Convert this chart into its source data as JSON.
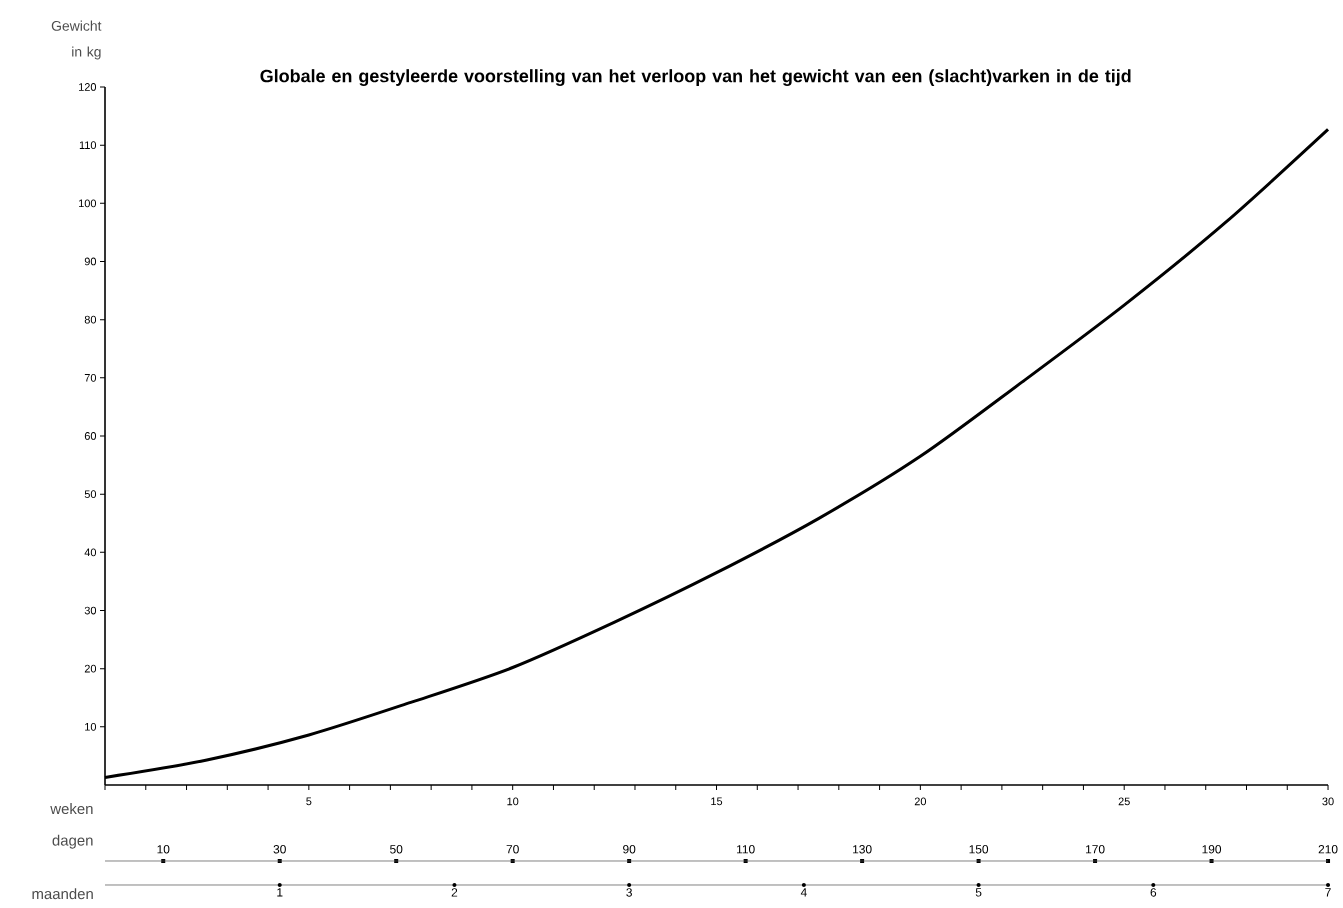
{
  "chart_data": {
    "type": "line",
    "title": "Globale en gestyleerde voorstelling van het verloop van het gewicht van een (slacht)varken in de tijd",
    "xlabel": "weken",
    "ylabel": "Gewicht in kg",
    "x2label": "dagen",
    "x": [
      0,
      2.5,
      5,
      7.5,
      10,
      12.5,
      15,
      17.5,
      20,
      22.5,
      25,
      27.5,
      30
    ],
    "series": [
      {
        "color": "#000000",
        "values": [
          1.3,
          4.3,
          8.6,
          14.2,
          20.2,
          28,
          36.5,
          45.8,
          56.5,
          69.3,
          82.5,
          96.8,
          112.7
        ]
      }
    ],
    "xlim": [
      0,
      30
    ],
    "xticks": [
      {
        "value": 0,
        "label": null
      },
      {
        "value": 1,
        "label": null
      },
      {
        "value": 2,
        "label": null
      },
      {
        "value": 3,
        "label": null
      },
      {
        "value": 4,
        "label": null
      },
      5,
      {
        "value": 6,
        "label": null
      },
      {
        "value": 7,
        "label": null
      },
      {
        "value": 8,
        "label": null
      },
      {
        "value": 9,
        "label": null
      },
      10,
      {
        "value": 11,
        "label": null
      },
      {
        "value": 12,
        "label": null
      },
      {
        "value": 13,
        "label": null
      },
      {
        "value": 14,
        "label": null
      },
      15,
      {
        "value": 16,
        "label": null
      },
      {
        "value": 17,
        "label": null
      },
      {
        "value": 18,
        "label": null
      },
      {
        "value": 19,
        "label": null
      },
      20,
      {
        "value": 21,
        "label": null
      },
      {
        "value": 22,
        "label": null
      },
      {
        "value": 23,
        "label": null
      },
      {
        "value": 24,
        "label": null
      },
      25,
      {
        "value": 26,
        "label": null
      },
      {
        "value": 27,
        "label": null
      },
      {
        "value": 28,
        "label": null
      },
      {
        "value": 29,
        "label": null
      },
      30
    ],
    "ylim": [
      0,
      120
    ],
    "yticks": [
      10,
      20,
      30,
      40,
      50,
      60,
      70,
      80,
      90,
      100,
      110,
      120
    ],
    "x2lim": [
      0,
      210
    ],
    "x2ticks": [
      10,
      30,
      50,
      70,
      90,
      110,
      130,
      150,
      170,
      190,
      210
    ],
    "annotations": [
      "maanden",
      "1",
      "2",
      "3",
      "4",
      "5",
      "6",
      "7"
    ],
    "grid": false,
    "marker": "none",
    "line_style": "solid"
  }
}
